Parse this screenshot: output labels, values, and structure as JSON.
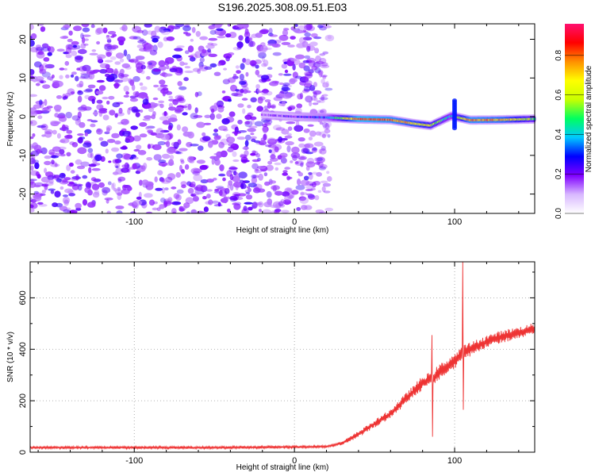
{
  "title": "S196.2025.308.09.51.E03",
  "chart_data": [
    {
      "type": "heatmap",
      "name": "spectrogram",
      "xlabel": "Height of straight line (km)",
      "ylabel": "Frequency (Hz)",
      "xlim": [
        -165,
        150
      ],
      "ylim": [
        -25,
        24
      ],
      "xticks": [
        -100,
        0,
        100
      ],
      "xtick_labels": [
        "-100",
        "0",
        "100"
      ],
      "yticks": [
        -20,
        -10,
        0,
        10,
        20
      ],
      "ytick_labels": [
        "-20",
        "-10",
        "0",
        "10",
        "20"
      ],
      "noise_region_x": [
        -165,
        22
      ],
      "signal_band": [
        {
          "x": -20,
          "freq": 0.5,
          "amp": 0.15
        },
        {
          "x": 0,
          "freq": 0.0,
          "amp": 0.2
        },
        {
          "x": 20,
          "freq": -0.2,
          "amp": 0.3
        },
        {
          "x": 40,
          "freq": -0.6,
          "amp": 0.85
        },
        {
          "x": 60,
          "freq": -0.8,
          "amp": 0.8
        },
        {
          "x": 75,
          "freq": -1.8,
          "amp": 0.7
        },
        {
          "x": 85,
          "freq": -2.3,
          "amp": 0.6
        },
        {
          "x": 98,
          "freq": 0.2,
          "amp": 0.4
        },
        {
          "x": 110,
          "freq": -0.9,
          "amp": 0.8
        },
        {
          "x": 130,
          "freq": -0.8,
          "amp": 0.75
        },
        {
          "x": 150,
          "freq": -0.6,
          "amp": 0.5
        }
      ],
      "colorbar": {
        "label": "Normalized spectral amplitude",
        "ticks": [
          0.0,
          0.2,
          0.4,
          0.6,
          0.8
        ],
        "tick_labels": [
          "0.0",
          "0.2",
          "0.4",
          "0.6",
          "0.8"
        ],
        "range": [
          0,
          0.96
        ],
        "colors": [
          "#ffffff",
          "#d8b8ff",
          "#8000ff",
          "#0000ff",
          "#00c8ff",
          "#00ff60",
          "#c8ff00",
          "#ffff00",
          "#ff9000",
          "#ff0000",
          "#ff1070"
        ]
      }
    },
    {
      "type": "line",
      "name": "snr",
      "xlabel": "Height of straight line (km)",
      "ylabel": "SNR (10 * v/v)",
      "xlim": [
        -165,
        150
      ],
      "ylim": [
        0,
        740
      ],
      "xticks": [
        -100,
        0,
        100
      ],
      "xtick_labels": [
        "-100",
        "0",
        "100"
      ],
      "yticks": [
        0,
        200,
        400,
        600
      ],
      "ytick_labels": [
        "0",
        "200",
        "400",
        "600"
      ],
      "series": [
        {
          "name": "SNR",
          "color": "#ee3333",
          "x": [
            -165,
            -100,
            -50,
            0,
            20,
            30,
            40,
            50,
            60,
            70,
            80,
            86,
            90,
            100,
            104,
            106,
            110,
            120,
            130,
            140,
            150
          ],
          "y": [
            18,
            18,
            18,
            20,
            22,
            35,
            70,
            110,
            150,
            210,
            270,
            285,
            310,
            355,
            375,
            390,
            400,
            430,
            450,
            465,
            480
          ],
          "noise": [
            10,
            10,
            10,
            10,
            10,
            15,
            25,
            30,
            35,
            45,
            55,
            60,
            60,
            60,
            60,
            60,
            55,
            50,
            50,
            45,
            45
          ],
          "spikes": [
            {
              "x": 86,
              "low": 60,
              "high": 455
            },
            {
              "x": 105,
              "low": 165,
              "high": 740
            }
          ]
        }
      ]
    }
  ]
}
